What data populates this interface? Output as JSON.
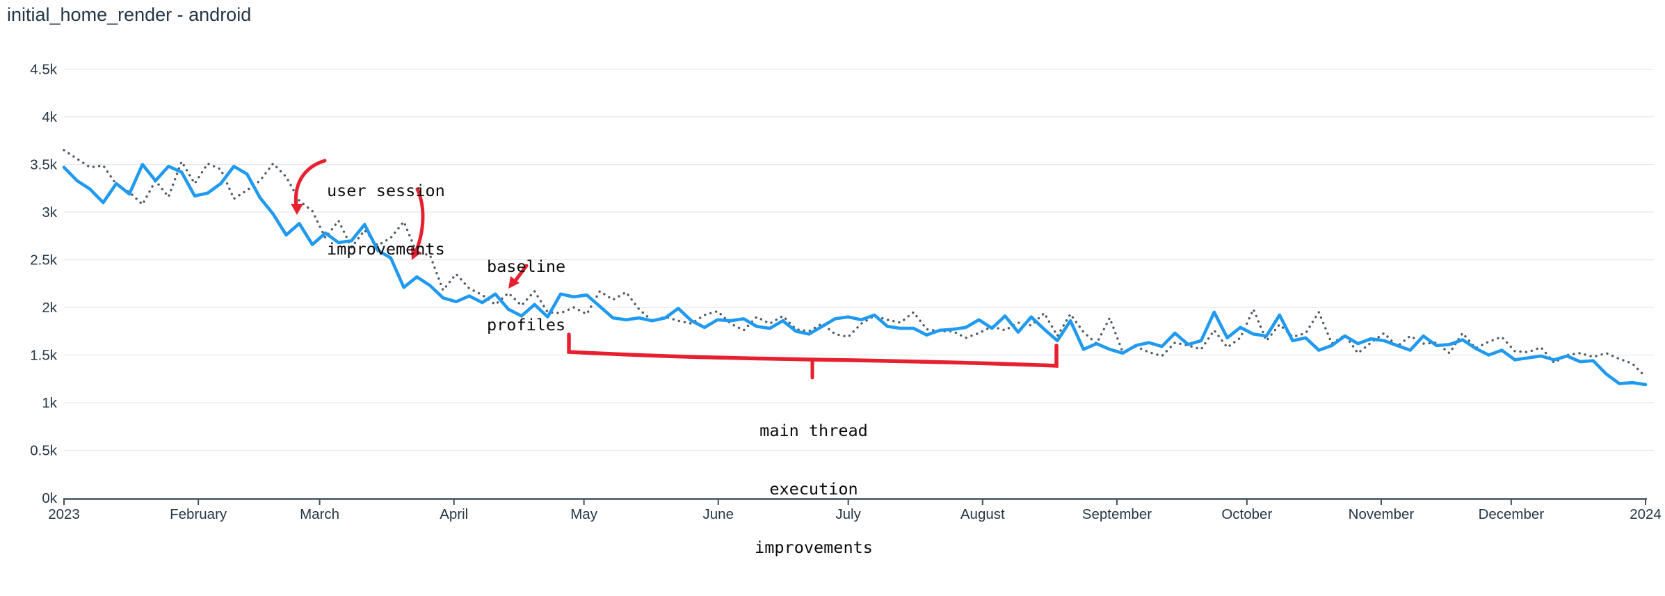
{
  "header": {
    "title": "initial_home_render - android"
  },
  "colors": {
    "series_blue": "#1f9af0",
    "series_dotted": "#4e5a65",
    "annotation_red": "#e72030",
    "grid": "#e8e8e8",
    "axis": "#3f4f5a",
    "text_dark": "#253746",
    "annotation_text": "#0b0b0b",
    "background": "#ffffff"
  },
  "annotations": [
    {
      "id": "user-session",
      "lines": [
        "user session",
        "improvements"
      ]
    },
    {
      "id": "baseline-profiles",
      "lines": [
        "baseline",
        "profiles"
      ]
    },
    {
      "id": "main-thread",
      "lines": [
        "main thread",
        "execution",
        "improvements"
      ]
    }
  ],
  "chart_data": {
    "type": "line",
    "title": "initial_home_render - android",
    "grid": true,
    "legend": "none",
    "x_axis": {
      "unit": "date",
      "domain_days": [
        0,
        365
      ],
      "ticks": [
        {
          "label": "2023",
          "day": 0
        },
        {
          "label": "February",
          "day": 31
        },
        {
          "label": "March",
          "day": 59
        },
        {
          "label": "April",
          "day": 90
        },
        {
          "label": "May",
          "day": 120
        },
        {
          "label": "June",
          "day": 151
        },
        {
          "label": "July",
          "day": 181
        },
        {
          "label": "August",
          "day": 212
        },
        {
          "label": "September",
          "day": 243
        },
        {
          "label": "October",
          "day": 273
        },
        {
          "label": "November",
          "day": 304
        },
        {
          "label": "December",
          "day": 334
        },
        {
          "label": "2024",
          "day": 365
        }
      ]
    },
    "y_axis": {
      "min": 0,
      "max": 4500,
      "ticks": [
        {
          "label": "0k",
          "value": 0
        },
        {
          "label": "0.5k",
          "value": 500
        },
        {
          "label": "1k",
          "value": 1000
        },
        {
          "label": "1.5k",
          "value": 1500
        },
        {
          "label": "2k",
          "value": 2000
        },
        {
          "label": "2.5k",
          "value": 2500
        },
        {
          "label": "3k",
          "value": 3000
        },
        {
          "label": "3.5k",
          "value": 3500
        },
        {
          "label": "4k",
          "value": 4000
        },
        {
          "label": "4.5k",
          "value": 4500
        }
      ]
    },
    "series": [
      {
        "name": "comparison-dotted",
        "style": "dotted",
        "color": "#4e5a65",
        "values": [
          3650,
          3560,
          3470,
          3490,
          3290,
          3210,
          3080,
          3330,
          3160,
          3530,
          3300,
          3510,
          3450,
          3140,
          3230,
          3330,
          3510,
          3370,
          3120,
          3010,
          2730,
          2910,
          2630,
          2810,
          2650,
          2730,
          2900,
          2570,
          2550,
          2180,
          2350,
          2200,
          2130,
          2030,
          2150,
          2020,
          2170,
          1950,
          1940,
          2000,
          1930,
          2170,
          2080,
          2160,
          1980,
          1860,
          1900,
          1860,
          1830,
          1920,
          1960,
          1830,
          1760,
          1900,
          1830,
          1910,
          1770,
          1750,
          1830,
          1720,
          1690,
          1830,
          1910,
          1870,
          1840,
          1950,
          1770,
          1750,
          1750,
          1680,
          1730,
          1800,
          1760,
          1840,
          1810,
          1940,
          1700,
          1930,
          1740,
          1620,
          1890,
          1530,
          1590,
          1530,
          1490,
          1630,
          1600,
          1560,
          1760,
          1580,
          1680,
          1980,
          1650,
          1820,
          1690,
          1730,
          1950,
          1620,
          1710,
          1520,
          1630,
          1730,
          1590,
          1700,
          1620,
          1630,
          1520,
          1730,
          1570,
          1640,
          1690,
          1540,
          1530,
          1580,
          1420,
          1500,
          1520,
          1480,
          1520,
          1460,
          1410,
          1270
        ]
      },
      {
        "name": "current-solid",
        "style": "solid",
        "color": "#1f9af0",
        "values": [
          3470,
          3330,
          3240,
          3100,
          3300,
          3190,
          3500,
          3330,
          3480,
          3420,
          3170,
          3200,
          3300,
          3480,
          3400,
          3150,
          2980,
          2760,
          2880,
          2660,
          2780,
          2680,
          2700,
          2870,
          2600,
          2520,
          2210,
          2320,
          2230,
          2100,
          2060,
          2120,
          2050,
          2140,
          1980,
          1910,
          2030,
          1900,
          2140,
          2110,
          2130,
          2010,
          1890,
          1870,
          1890,
          1860,
          1890,
          1990,
          1860,
          1790,
          1870,
          1860,
          1880,
          1800,
          1780,
          1860,
          1750,
          1720,
          1800,
          1880,
          1900,
          1870,
          1920,
          1800,
          1780,
          1780,
          1710,
          1760,
          1770,
          1790,
          1870,
          1780,
          1910,
          1740,
          1900,
          1770,
          1650,
          1860,
          1560,
          1620,
          1560,
          1520,
          1600,
          1630,
          1590,
          1730,
          1610,
          1650,
          1950,
          1680,
          1790,
          1720,
          1700,
          1920,
          1650,
          1680,
          1550,
          1600,
          1700,
          1620,
          1670,
          1650,
          1600,
          1550,
          1700,
          1600,
          1610,
          1660,
          1570,
          1500,
          1550,
          1450,
          1470,
          1490,
          1450,
          1490,
          1430,
          1440,
          1300,
          1200,
          1210,
          1190
        ]
      }
    ]
  }
}
